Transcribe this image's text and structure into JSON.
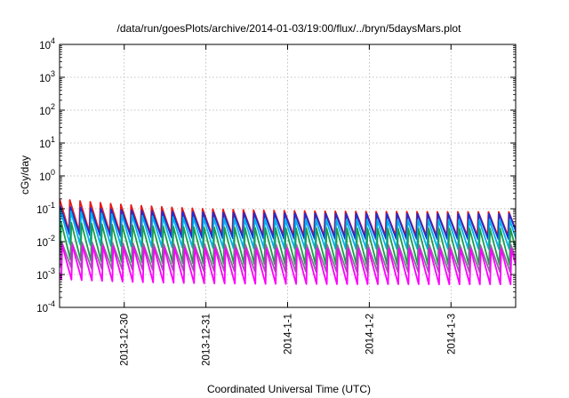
{
  "chart_data": {
    "type": "line",
    "title": "/data/run/goesPlots/archive/2014-01-03/19:00/flux/../bryn/5daysMars.plot",
    "xlabel": "Coordinated Universal Time (UTC)",
    "ylabel": "cGy/day",
    "yscale": "log",
    "ylim": [
      0.0001,
      10000
    ],
    "y_ticks": [
      {
        "mant": "10",
        "exp": "-4"
      },
      {
        "mant": "10",
        "exp": "-3"
      },
      {
        "mant": "10",
        "exp": "-2"
      },
      {
        "mant": "10",
        "exp": "-1"
      },
      {
        "mant": "10",
        "exp": "0"
      },
      {
        "mant": "10",
        "exp": "1"
      },
      {
        "mant": "10",
        "exp": "2"
      },
      {
        "mant": "10",
        "exp": "3"
      },
      {
        "mant": "10",
        "exp": "4"
      }
    ],
    "x_range": [
      "2013-12-29 05:00",
      "2014-01-03 19:00"
    ],
    "x_ticks": [
      "2013-12-30",
      "2013-12-31",
      "2014-1-1",
      "2014-1-2",
      "2014-1-3"
    ],
    "grid": true,
    "pattern": "sawtooth, period about 3 hours",
    "series": [
      {
        "color": "#e8191b",
        "peak": 0.08,
        "trough": 0.015,
        "start_peak": 0.2,
        "phase": 0.0
      },
      {
        "color": "#1a2fd6",
        "peak": 0.07,
        "trough": 0.012,
        "start_peak": 0.12,
        "phase": 0.05
      },
      {
        "color": "#00b2e8",
        "peak": 0.045,
        "trough": 0.006,
        "start_peak": 0.09,
        "phase": 0.1
      },
      {
        "color": "#1a9c4a",
        "peak": 0.025,
        "trough": 0.002,
        "start_peak": 0.04,
        "phase": 0.15
      },
      {
        "color": "#8a6b9a",
        "peak": 0.008,
        "trough": 0.0012,
        "start_peak": 0.01,
        "phase": 0.2
      },
      {
        "color": "#ff00ff",
        "peak": 0.006,
        "trough": 0.0005,
        "start_peak": 0.008,
        "phase": 0.25
      }
    ]
  }
}
